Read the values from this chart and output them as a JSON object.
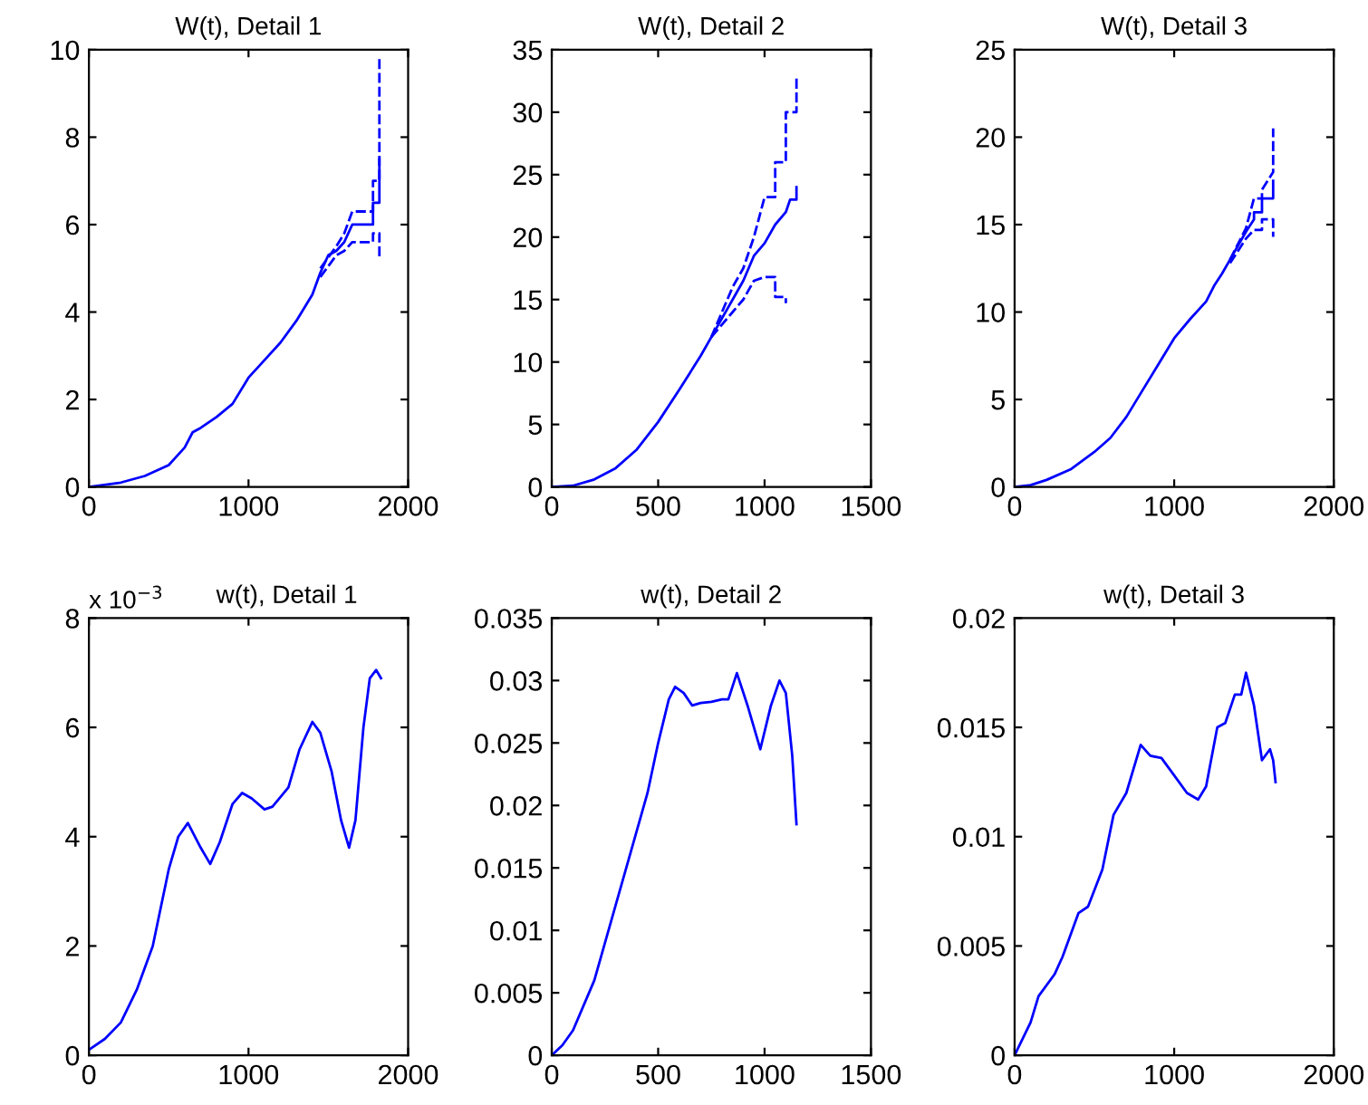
{
  "chart_data": [
    {
      "type": "line",
      "title": "W(t), Detail 1",
      "xlim": [
        0,
        2000
      ],
      "xticks": [
        0,
        1000,
        2000
      ],
      "ylim": [
        0,
        10
      ],
      "yticks": [
        0,
        2,
        4,
        6,
        8,
        10
      ],
      "series": [
        {
          "color": "#0000ff",
          "line_style": "solid",
          "x": [
            0,
            200,
            350,
            500,
            600,
            650,
            700,
            800,
            900,
            1000,
            1100,
            1200,
            1300,
            1400,
            1450,
            1500,
            1550,
            1600,
            1650,
            1780,
            1780,
            1820,
            1820
          ],
          "values": [
            0,
            0.1,
            0.25,
            0.5,
            0.9,
            1.25,
            1.35,
            1.6,
            1.9,
            2.5,
            2.9,
            3.3,
            3.8,
            4.4,
            4.9,
            5.3,
            5.4,
            5.6,
            6.0,
            6.0,
            6.5,
            6.5,
            7.5
          ]
        },
        {
          "color": "#0000ff",
          "line_style": "dashed",
          "x": [
            1450,
            1550,
            1600,
            1650,
            1780,
            1780,
            1820,
            1820
          ],
          "values": [
            5.0,
            5.5,
            5.8,
            6.3,
            6.3,
            7.0,
            7.0,
            9.8
          ]
        },
        {
          "color": "#0000ff",
          "line_style": "dashed",
          "x": [
            1450,
            1550,
            1600,
            1650,
            1780,
            1780,
            1820,
            1820
          ],
          "values": [
            4.8,
            5.3,
            5.4,
            5.6,
            5.6,
            5.8,
            5.8,
            5.2
          ]
        }
      ]
    },
    {
      "type": "line",
      "title": "W(t), Detail 2",
      "xlim": [
        0,
        1500
      ],
      "xticks": [
        0,
        500,
        1000,
        1500
      ],
      "ylim": [
        0,
        35
      ],
      "yticks": [
        0,
        5,
        10,
        15,
        20,
        25,
        30,
        35
      ],
      "series": [
        {
          "color": "#0000ff",
          "line_style": "solid",
          "x": [
            0,
            100,
            200,
            300,
            400,
            500,
            600,
            700,
            750,
            800,
            850,
            900,
            950,
            1000,
            1050,
            1100,
            1120,
            1150,
            1150
          ],
          "values": [
            0,
            0.1,
            0.6,
            1.5,
            3,
            5.2,
            7.8,
            10.5,
            12,
            13.5,
            15,
            16.5,
            18.5,
            19.5,
            21,
            22,
            23,
            23,
            24
          ]
        },
        {
          "color": "#0000ff",
          "line_style": "dashed",
          "x": [
            750,
            800,
            850,
            900,
            950,
            1000,
            1050,
            1050,
            1100,
            1100,
            1150,
            1150
          ],
          "values": [
            12,
            14,
            16,
            17.5,
            20,
            23.2,
            23.2,
            26,
            26,
            30,
            30,
            33
          ]
        },
        {
          "color": "#0000ff",
          "line_style": "dashed",
          "x": [
            750,
            800,
            850,
            900,
            950,
            1000,
            1050,
            1050,
            1100,
            1100
          ],
          "values": [
            12,
            13,
            14,
            15,
            16.5,
            16.8,
            16.8,
            15.2,
            15.2,
            14.7
          ]
        }
      ]
    },
    {
      "type": "line",
      "title": "W(t), Detail 3",
      "xlim": [
        0,
        2000
      ],
      "xticks": [
        0,
        1000,
        2000
      ],
      "ylim": [
        0,
        25
      ],
      "yticks": [
        0,
        5,
        10,
        15,
        20,
        25
      ],
      "series": [
        {
          "color": "#0000ff",
          "line_style": "solid",
          "x": [
            0,
            100,
            200,
            350,
            500,
            600,
            700,
            800,
            900,
            1000,
            1100,
            1200,
            1250,
            1300,
            1350,
            1400,
            1450,
            1500,
            1500,
            1550,
            1550,
            1620,
            1620
          ],
          "values": [
            0,
            0.1,
            0.4,
            1,
            2,
            2.8,
            4,
            5.5,
            7,
            8.5,
            9.6,
            10.6,
            11.5,
            12.2,
            13,
            13.8,
            14.6,
            15.3,
            15.7,
            15.7,
            16.5,
            16.5,
            17.5
          ]
        },
        {
          "color": "#0000ff",
          "line_style": "dashed",
          "x": [
            1350,
            1450,
            1500,
            1550,
            1550,
            1620,
            1620
          ],
          "values": [
            13,
            14.8,
            16.5,
            16.5,
            17,
            18,
            20.5
          ]
        },
        {
          "color": "#0000ff",
          "line_style": "dashed",
          "x": [
            1350,
            1450,
            1500,
            1550,
            1550,
            1620,
            1620
          ],
          "values": [
            12.8,
            14.2,
            14.7,
            14.7,
            15.3,
            15.3,
            14.3
          ]
        }
      ]
    },
    {
      "type": "line",
      "title": "w(t), Detail 1",
      "annotations": [
        "x 10$^{−3}$"
      ],
      "xlim": [
        0,
        2000
      ],
      "xticks": [
        0,
        1000,
        2000
      ],
      "ylim": [
        0,
        8
      ],
      "yticks": [
        0,
        2,
        4,
        6,
        8
      ],
      "series": [
        {
          "color": "#0000ff",
          "line_style": "solid",
          "x": [
            0,
            100,
            200,
            300,
            400,
            500,
            560,
            620,
            700,
            760,
            820,
            900,
            960,
            1020,
            1100,
            1150,
            1250,
            1320,
            1400,
            1450,
            1520,
            1580,
            1630,
            1670,
            1720,
            1760,
            1800,
            1830
          ],
          "values": [
            0.1,
            0.3,
            0.6,
            1.2,
            2,
            3.4,
            4.0,
            4.25,
            3.8,
            3.5,
            3.9,
            4.6,
            4.8,
            4.7,
            4.5,
            4.55,
            4.9,
            5.6,
            6.1,
            5.9,
            5.2,
            4.3,
            3.8,
            4.3,
            6.0,
            6.9,
            7.05,
            6.9
          ]
        }
      ]
    },
    {
      "type": "line",
      "title": "w(t), Detail 2",
      "xlim": [
        0,
        1500
      ],
      "xticks": [
        0,
        500,
        1000,
        1500
      ],
      "ylim": [
        0,
        0.035
      ],
      "yticks": [
        0,
        0.005,
        0.01,
        0.015,
        0.02,
        0.025,
        0.03,
        0.035
      ],
      "series": [
        {
          "color": "#0000ff",
          "line_style": "solid",
          "x": [
            0,
            50,
            100,
            200,
            300,
            400,
            450,
            500,
            550,
            580,
            620,
            660,
            700,
            750,
            800,
            830,
            870,
            920,
            980,
            1030,
            1070,
            1100,
            1130,
            1150
          ],
          "values": [
            0,
            0.0008,
            0.002,
            0.006,
            0.012,
            0.018,
            0.021,
            0.025,
            0.0285,
            0.0295,
            0.029,
            0.028,
            0.0282,
            0.0283,
            0.0285,
            0.0285,
            0.0306,
            0.028,
            0.0245,
            0.028,
            0.03,
            0.029,
            0.024,
            0.0185
          ]
        }
      ]
    },
    {
      "type": "line",
      "title": "w(t), Detail 3",
      "xlim": [
        0,
        2000
      ],
      "xticks": [
        0,
        1000,
        2000
      ],
      "ylim": [
        0,
        0.02
      ],
      "yticks": [
        0,
        0.005,
        0.01,
        0.015,
        0.02
      ],
      "series": [
        {
          "color": "#0000ff",
          "line_style": "solid",
          "x": [
            0,
            100,
            150,
            250,
            300,
            400,
            460,
            550,
            620,
            700,
            790,
            850,
            920,
            1000,
            1080,
            1150,
            1200,
            1270,
            1320,
            1380,
            1420,
            1450,
            1500,
            1550,
            1600,
            1620,
            1635
          ],
          "values": [
            0,
            0.0015,
            0.0027,
            0.0037,
            0.0045,
            0.0065,
            0.0068,
            0.0085,
            0.011,
            0.012,
            0.0142,
            0.0137,
            0.0136,
            0.0128,
            0.012,
            0.0117,
            0.0123,
            0.015,
            0.0152,
            0.0165,
            0.0165,
            0.0175,
            0.016,
            0.0135,
            0.014,
            0.0135,
            0.0125
          ]
        }
      ]
    }
  ]
}
